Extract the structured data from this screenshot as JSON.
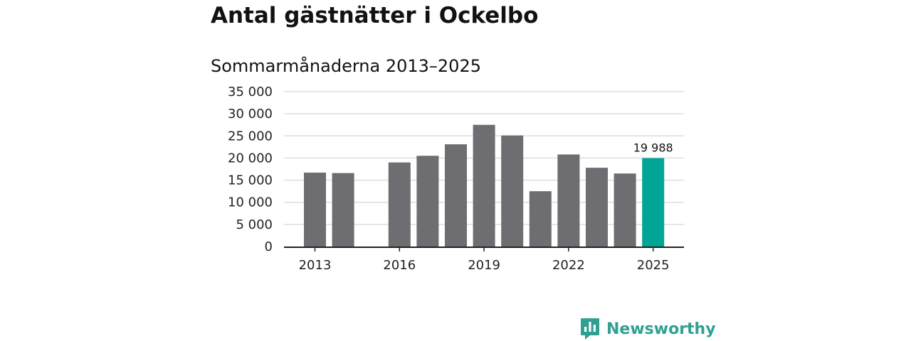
{
  "title": "Antal gästnätter i Ockelbo",
  "subtitle": "Sommarmånaderna 2013–2025",
  "chart_data": {
    "type": "bar",
    "categories": [
      "2013",
      "2014",
      "2015",
      "2016",
      "2017",
      "2018",
      "2019",
      "2020",
      "2021",
      "2022",
      "2023",
      "2024",
      "2025"
    ],
    "values": [
      16700,
      16600,
      null,
      19000,
      20500,
      23100,
      27500,
      25100,
      12500,
      20800,
      17800,
      16500,
      19988
    ],
    "x_tick_labels": [
      "2013",
      "2016",
      "2019",
      "2022",
      "2025"
    ],
    "y_ticks": [
      0,
      5000,
      10000,
      15000,
      20000,
      25000,
      30000,
      35000
    ],
    "y_tick_labels": [
      "0",
      "5 000",
      "10 000",
      "15 000",
      "20 000",
      "25 000",
      "30 000",
      "35 000"
    ],
    "ylim": [
      0,
      35000
    ],
    "grid": true,
    "highlight": {
      "category": "2025",
      "label": "19 988"
    },
    "colors": {
      "bar": "#6d6d72",
      "highlight": "#00a596",
      "grid": "#dedede",
      "axis": "#222222"
    }
  },
  "logo": {
    "text": "Newsworthy",
    "icon": "newsworthy-chat-bar-icon",
    "color": "#2fa092"
  }
}
